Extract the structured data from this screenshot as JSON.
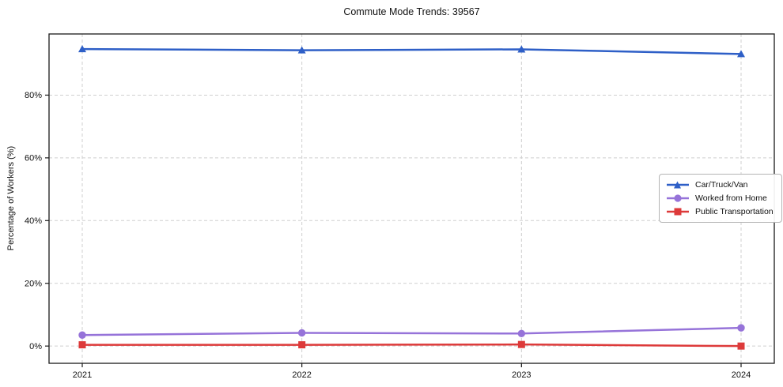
{
  "chart_data": {
    "type": "line",
    "title": "Commute Mode Trends: 39567",
    "xlabel": "",
    "ylabel": "Percentage of Workers (%)",
    "categories": [
      "2021",
      "2022",
      "2023",
      "2024"
    ],
    "series": [
      {
        "name": "Car/Truck/Van",
        "marker": "triangle",
        "color": "#2e5fc7",
        "values": [
          94.7,
          94.3,
          94.6,
          93.1
        ]
      },
      {
        "name": "Worked from Home",
        "marker": "circle",
        "color": "#9673d9",
        "values": [
          3.5,
          4.2,
          4.0,
          5.8
        ]
      },
      {
        "name": "Public Transportation",
        "marker": "square",
        "color": "#dd3a3a",
        "values": [
          0.4,
          0.4,
          0.5,
          0.0
        ]
      }
    ],
    "y_tick_values": [
      0,
      20,
      40,
      60,
      80
    ],
    "y_tick_labels": [
      "0%",
      "20%",
      "40%",
      "60%",
      "80%"
    ],
    "ylim": [
      -5.5,
      99.5
    ],
    "grid": "dashed",
    "legend_position": "center-right",
    "colors": {
      "grid": "#cfcfcf",
      "axis": "#1a1a1a",
      "background": "#ffffff"
    }
  }
}
